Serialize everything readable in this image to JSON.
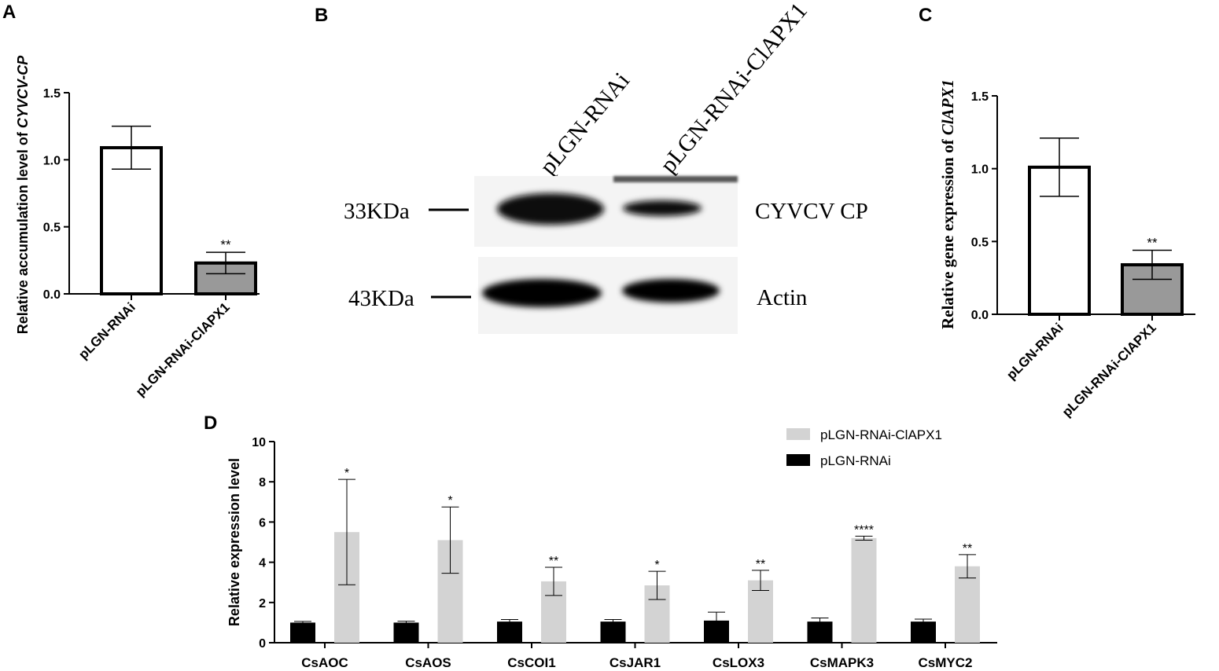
{
  "panels": {
    "a": {
      "label": "A",
      "chart_data": {
        "type": "bar",
        "ylabel_prefix": "Relative accumulation level of ",
        "ylabel_italic": "CYVCV-CP",
        "ylim": [
          0,
          1.5
        ],
        "yticks": [
          "0.0",
          "0.5",
          "1.0",
          "1.5"
        ],
        "yticks_values": [
          0,
          0.5,
          1.0,
          1.5
        ],
        "categories": [
          "pLGN-RNAi",
          "pLGN-RNAi-ClAPX1"
        ],
        "values": [
          1.09,
          0.23
        ],
        "errors": [
          0.16,
          0.08
        ],
        "fills": [
          "#ffffff",
          "#999999"
        ],
        "significance": [
          "",
          "**"
        ]
      }
    },
    "b": {
      "label": "B",
      "lane_labels": [
        "pLGN-RNAi",
        "pLGN-RNAi-ClAPX1"
      ],
      "markers": [
        "33KDa",
        "43KDa"
      ],
      "targets": [
        "CYVCV CP",
        "Actin"
      ],
      "band_intensity": {
        "cyvcv_cp": [
          1.0,
          0.25
        ],
        "actin": [
          1.0,
          0.9
        ]
      }
    },
    "c": {
      "label": "C",
      "chart_data": {
        "type": "bar",
        "ylabel_prefix": "Relative gene expression of ",
        "ylabel_italic": "ClAPX1",
        "ylim": [
          0,
          1.5
        ],
        "yticks": [
          "0.0",
          "0.5",
          "1.0",
          "1.5"
        ],
        "yticks_values": [
          0,
          0.5,
          1.0,
          1.5
        ],
        "categories": [
          "pLGN-RNAi",
          "pLGN-RNAi-ClAPX1"
        ],
        "values": [
          1.01,
          0.34
        ],
        "errors": [
          0.2,
          0.1
        ],
        "fills": [
          "#ffffff",
          "#999999"
        ],
        "significance": [
          "",
          "**"
        ]
      }
    },
    "d": {
      "label": "D",
      "chart_data": {
        "type": "bar",
        "ylabel": "Relative expression level",
        "ylim": [
          0,
          10
        ],
        "yticks": [
          "0",
          "2",
          "4",
          "6",
          "8",
          "10"
        ],
        "yticks_values": [
          0,
          2,
          4,
          6,
          8,
          10
        ],
        "categories": [
          "CsAOC",
          "CsAOS",
          "CsCOI1",
          "CsJAR1",
          "CsLOX3",
          "CsMAPK3",
          "CsMYC2"
        ],
        "legend_placement": "top-right",
        "series": [
          {
            "name": "pLGN-RNAi",
            "color": "#000000",
            "values": [
              1.0,
              1.0,
              1.05,
              1.05,
              1.1,
              1.05,
              1.05
            ],
            "errors": [
              0.06,
              0.07,
              0.1,
              0.1,
              0.42,
              0.18,
              0.12
            ],
            "significance": [
              "",
              "",
              "",
              "",
              "",
              "",
              ""
            ]
          },
          {
            "name": "pLGN-RNAi-ClAPX1",
            "color": "#d3d3d3",
            "values": [
              5.5,
              5.1,
              3.05,
              2.85,
              3.1,
              5.2,
              3.8
            ],
            "errors": [
              2.62,
              1.65,
              0.7,
              0.7,
              0.5,
              0.1,
              0.58
            ],
            "significance": [
              "*",
              "*",
              "**",
              "*",
              "**",
              "****",
              "**"
            ]
          }
        ]
      }
    }
  }
}
